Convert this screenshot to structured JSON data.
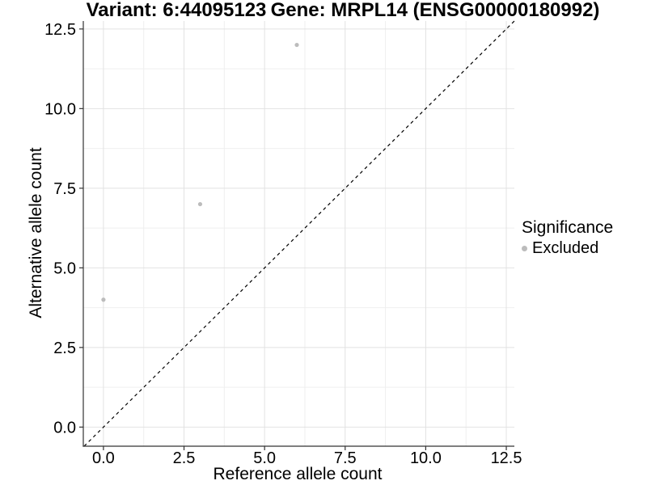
{
  "figure": {
    "title_left": "Variant: 6:44095123",
    "title_right": "Gene: MRPL14 (ENSG00000180992)"
  },
  "axes": {
    "x_label": "Reference allele count",
    "y_label": "Alternative allele count"
  },
  "legend": {
    "title": "Significance",
    "items": [
      {
        "label": "Excluded",
        "color": "#bcbcbc"
      }
    ]
  },
  "chart_data": {
    "type": "scatter",
    "title": "Variant: 6:44095123 / Gene: MRPL14 (ENSG00000180992)",
    "xlabel": "Reference allele count",
    "ylabel": "Alternative allele count",
    "xlim": [
      -0.625,
      12.75
    ],
    "ylim": [
      -0.6,
      12.75
    ],
    "x_ticks": [
      0,
      2.5,
      5,
      7.5,
      10,
      12.5
    ],
    "x_tick_labels": [
      "0.0",
      "2.5",
      "5.0",
      "7.5",
      "10.0",
      "12.5"
    ],
    "y_ticks": [
      0,
      2.5,
      5,
      7.5,
      10,
      12.5
    ],
    "y_tick_labels": [
      "0.0",
      "2.5",
      "5.0",
      "7.5",
      "10.0",
      "12.5"
    ],
    "x_minor_ticks": [
      1.25,
      3.75,
      6.25,
      8.75,
      11.25
    ],
    "y_minor_ticks": [
      1.25,
      3.75,
      6.25,
      8.75,
      11.25
    ],
    "grid": {
      "major": "#e2e2e2",
      "minor": "#efefef"
    },
    "axis_color": "#333333",
    "series": [
      {
        "name": "Excluded",
        "color": "#bcbcbc",
        "points": [
          [
            0,
            4
          ],
          [
            3,
            7
          ],
          [
            6,
            12
          ]
        ]
      }
    ],
    "reference_line": {
      "type": "identity",
      "style": "dashed",
      "color": "#000000"
    },
    "legend_position": "right",
    "legend_title": "Significance"
  }
}
